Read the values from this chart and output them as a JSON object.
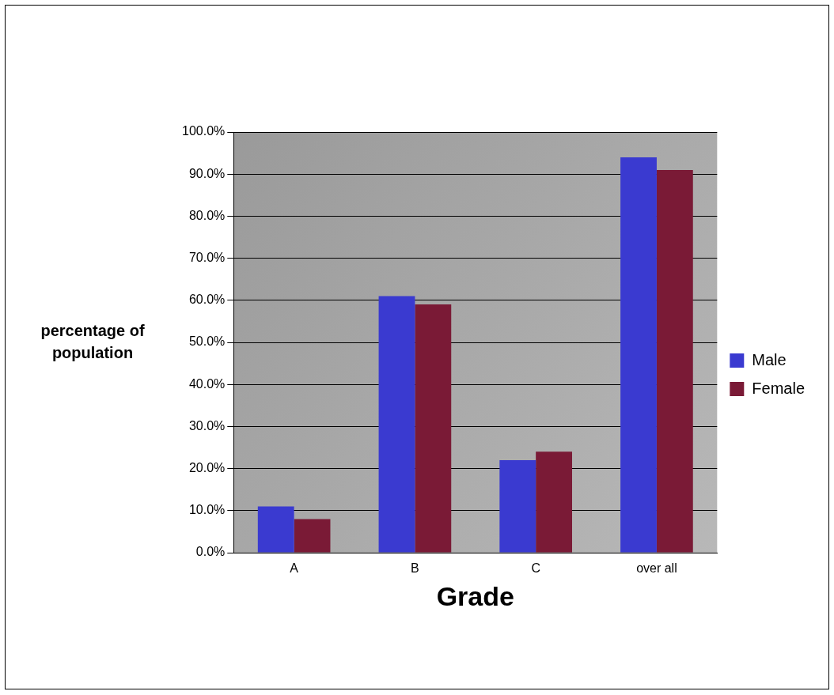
{
  "chart_data": {
    "type": "bar",
    "xlabel": "Grade",
    "ylabel": "percentage of population",
    "categories": [
      "A",
      "B",
      "C",
      "over all"
    ],
    "series": [
      {
        "name": "Male",
        "color": "#3a3ad0",
        "values": [
          11,
          61,
          22,
          94
        ]
      },
      {
        "name": "Female",
        "color": "#7a1a36",
        "values": [
          8,
          59,
          24,
          91
        ]
      }
    ],
    "ylim": [
      0,
      100
    ],
    "yticks": [
      {
        "value": 0,
        "label": "0.0%"
      },
      {
        "value": 10,
        "label": "10.0%"
      },
      {
        "value": 20,
        "label": "20.0%"
      },
      {
        "value": 30,
        "label": "30.0%"
      },
      {
        "value": 40,
        "label": "40.0%"
      },
      {
        "value": 50,
        "label": "50.0%"
      },
      {
        "value": 60,
        "label": "60.0%"
      },
      {
        "value": 70,
        "label": "70.0%"
      },
      {
        "value": 80,
        "label": "80.0%"
      },
      {
        "value": 90,
        "label": "90.0%"
      },
      {
        "value": 100,
        "label": "100.0%"
      }
    ],
    "grid": "y",
    "legend": "right"
  }
}
